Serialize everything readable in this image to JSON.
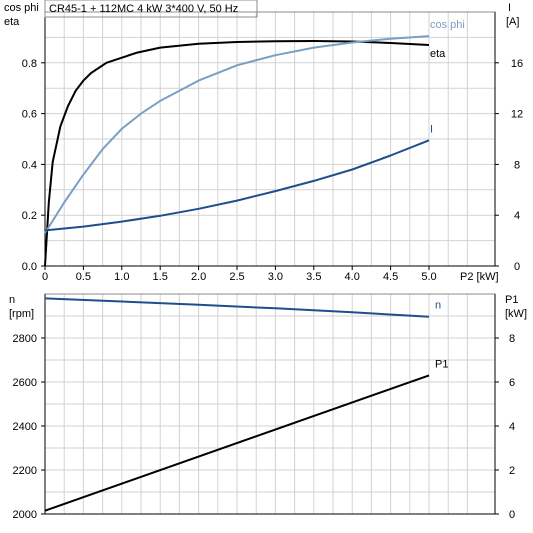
{
  "colors": {
    "eta": "#000000",
    "cos_phi": "#7a9fc4",
    "current": "#1f4e8c",
    "speed": "#1f4e8c",
    "power_input": "#000000",
    "grid": "#d2d2d2",
    "frame": "#8c8c8c"
  },
  "chart_data": [
    {
      "type": "line",
      "title": "CR45-1 + 112MC   4 kW   3*400 V, 50 Hz",
      "xlabel": "P2 [kW]",
      "ylabel_left": [
        "cos phi",
        "eta"
      ],
      "ylabel_right": [
        "I",
        "[A]"
      ],
      "xlim": [
        0,
        5.5
      ],
      "ylim_left": [
        0,
        1.0
      ],
      "ylim_right": [
        0,
        20
      ],
      "x_ticks": [
        "0",
        "0.5",
        "1.0",
        "1.5",
        "2.0",
        "2.5",
        "3.0",
        "3.5",
        "4.0",
        "4.5",
        "5.0"
      ],
      "x_tick_values": [
        0,
        0.5,
        1.0,
        1.5,
        2.0,
        2.5,
        3.0,
        3.5,
        4.0,
        4.5,
        5.0
      ],
      "y_left_ticks": [
        "0.0",
        "0.2",
        "0.4",
        "0.6",
        "0.8"
      ],
      "y_left_tick_values": [
        0,
        0.2,
        0.4,
        0.6,
        0.8
      ],
      "y_right_ticks": [
        "0",
        "4",
        "8",
        "12",
        "16"
      ],
      "y_right_tick_values": [
        0,
        4,
        8,
        12,
        16
      ],
      "grid": true,
      "series": [
        {
          "name": "eta",
          "axis": "left",
          "x": [
            0,
            0.05,
            0.1,
            0.2,
            0.3,
            0.4,
            0.5,
            0.6,
            0.8,
            1.0,
            1.2,
            1.5,
            2.0,
            2.5,
            3.0,
            3.5,
            4.0,
            4.5,
            5.0
          ],
          "values": [
            0,
            0.25,
            0.41,
            0.55,
            0.63,
            0.69,
            0.73,
            0.76,
            0.8,
            0.82,
            0.84,
            0.86,
            0.875,
            0.882,
            0.885,
            0.886,
            0.884,
            0.878,
            0.87
          ]
        },
        {
          "name": "cos phi",
          "axis": "left",
          "x": [
            0,
            0.25,
            0.5,
            0.75,
            1.0,
            1.25,
            1.5,
            1.75,
            2.0,
            2.5,
            3.0,
            3.5,
            4.0,
            4.5,
            5.0
          ],
          "values": [
            0.13,
            0.25,
            0.36,
            0.46,
            0.54,
            0.6,
            0.65,
            0.69,
            0.73,
            0.79,
            0.83,
            0.86,
            0.88,
            0.895,
            0.905
          ]
        },
        {
          "name": "I",
          "axis": "right",
          "x": [
            0,
            0.5,
            1.0,
            1.5,
            2.0,
            2.5,
            3.0,
            3.5,
            4.0,
            4.5,
            5.0
          ],
          "values": [
            2.8,
            3.1,
            3.5,
            3.95,
            4.5,
            5.15,
            5.9,
            6.7,
            7.6,
            8.7,
            9.9
          ]
        }
      ]
    },
    {
      "type": "line",
      "xlim": [
        0,
        5.5
      ],
      "ylabel_left": [
        "n",
        "[rpm]"
      ],
      "ylabel_right": [
        "P1",
        "[kW]"
      ],
      "ylim_left": [
        2000,
        3000
      ],
      "ylim_right": [
        0,
        10
      ],
      "y_left_ticks": [
        "2000",
        "2200",
        "2400",
        "2600",
        "2800"
      ],
      "y_left_tick_values": [
        2000,
        2200,
        2400,
        2600,
        2800
      ],
      "y_right_ticks": [
        "0",
        "2",
        "4",
        "6",
        "8"
      ],
      "y_right_tick_values": [
        0,
        2,
        4,
        6,
        8
      ],
      "grid": true,
      "series": [
        {
          "name": "n",
          "axis": "left",
          "x": [
            0,
            1.0,
            2.0,
            3.0,
            4.0,
            5.0
          ],
          "values": [
            2980,
            2966,
            2951,
            2935,
            2917,
            2897
          ]
        },
        {
          "name": "P1",
          "axis": "right",
          "x": [
            0,
            5.0
          ],
          "values": [
            0.15,
            6.3
          ]
        }
      ]
    }
  ]
}
